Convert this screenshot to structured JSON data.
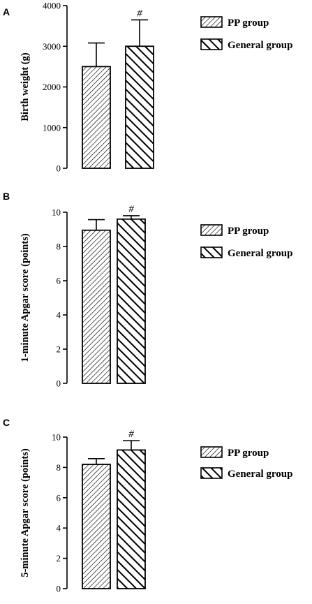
{
  "chart_data": [
    {
      "type": "bar",
      "panel": "A",
      "categories": [
        "PP group",
        "General group"
      ],
      "values": [
        2500,
        3000
      ],
      "errors": [
        580,
        650
      ],
      "significance": [
        "",
        "#"
      ],
      "ylabel": "Birth weight (g)",
      "ylim": [
        0,
        4000
      ],
      "yticks": [
        0,
        1000,
        2000,
        3000,
        4000
      ],
      "legend": [
        "PP group",
        "General group"
      ],
      "legend_position": "right",
      "grid": false
    },
    {
      "type": "bar",
      "panel": "B",
      "categories": [
        "PP group",
        "General group"
      ],
      "values": [
        8.95,
        9.6
      ],
      "errors": [
        0.62,
        0.2
      ],
      "significance": [
        "",
        "#"
      ],
      "ylabel": "1-minute Apgar score (points)",
      "ylim": [
        0,
        10
      ],
      "yticks": [
        0,
        2,
        4,
        6,
        8,
        10
      ],
      "legend": [
        "PP group",
        "General group"
      ],
      "legend_position": "right",
      "grid": false
    },
    {
      "type": "bar",
      "panel": "C",
      "categories": [
        "PP group",
        "General group"
      ],
      "values": [
        8.2,
        9.15
      ],
      "errors": [
        0.38,
        0.62
      ],
      "significance": [
        "",
        "#"
      ],
      "ylabel": "5-minute Apgar score (points)",
      "ylim": [
        0,
        10
      ],
      "yticks": [
        0,
        2,
        4,
        6,
        8,
        10
      ],
      "legend": [
        "PP group",
        "General group"
      ],
      "legend_position": "right",
      "grid": false
    }
  ]
}
